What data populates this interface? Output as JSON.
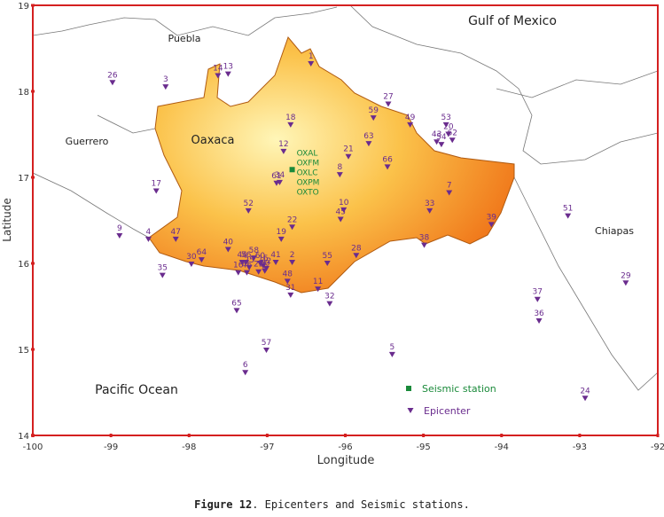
{
  "chart_data": {
    "type": "scatter",
    "xlabel": "Longitude",
    "ylabel": "Latitude",
    "xlim": [
      -100,
      -92
    ],
    "ylim": [
      14,
      19
    ],
    "xticks": [
      -100,
      -99,
      -98,
      -97,
      -96,
      -95,
      -94,
      -93,
      -92
    ],
    "yticks": [
      14,
      15,
      16,
      17,
      18,
      19
    ],
    "annotations": [
      "Puebla",
      "Gulf of Mexico",
      "Guerrero",
      "Oaxaca",
      "Chiapas",
      "Pacific Ocean"
    ],
    "series": [
      {
        "name": "Seismic station",
        "color": "#1a8a3a",
        "marker": "square",
        "x": [
          -96.68
        ],
        "values": [
          17.09
        ],
        "codes": [
          "OXAL",
          "OXFM",
          "OXLC",
          "OXPM",
          "OXTO"
        ]
      },
      {
        "name": "Epicenter",
        "color": "#6a2c8e",
        "marker": "triangle-down",
        "labels": [
          "1",
          "2",
          "3",
          "4",
          "5",
          "6",
          "7",
          "8",
          "9",
          "10",
          "11",
          "12",
          "13",
          "14",
          "15",
          "16",
          "17",
          "18",
          "19",
          "20",
          "21",
          "22",
          "23",
          "24",
          "25",
          "26",
          "27",
          "28",
          "29",
          "30",
          "31",
          "32",
          "33",
          "34",
          "35",
          "36",
          "37",
          "38",
          "39",
          "40",
          "41",
          "42",
          "43",
          "44",
          "45",
          "46",
          "47",
          "48",
          "49",
          "50",
          "51",
          "52",
          "53",
          "54",
          "55",
          "56",
          "57",
          "58",
          "59",
          "60",
          "61",
          "62",
          "63",
          "64",
          "65",
          "66"
        ],
        "x": [
          -96.44,
          -96.68,
          -98.3,
          -98.52,
          -95.4,
          -97.28,
          -94.67,
          -96.07,
          -98.89,
          -96.02,
          -96.35,
          -96.79,
          -97.5,
          -97.63,
          -97.05,
          -97.37,
          -98.42,
          -96.7,
          -96.82,
          -94.68,
          -95.96,
          -96.68,
          -97.11,
          -92.93,
          -97.23,
          -98.98,
          -95.45,
          -95.86,
          -92.41,
          -97.97,
          -96.7,
          -96.2,
          -94.92,
          -96.84,
          -98.34,
          -93.52,
          -93.54,
          -94.99,
          -94.13,
          -97.5,
          -96.89,
          -97.01,
          -94.83,
          -97.32,
          -96.06,
          -97.26,
          -98.17,
          -96.74,
          -95.17,
          -97.03,
          -93.15,
          -97.24,
          -94.71,
          -94.77,
          -96.23,
          -97.27,
          -97.01,
          -97.17,
          -95.64,
          -97.09,
          -96.88,
          -94.63,
          -95.7,
          -97.84,
          -97.39,
          -95.46
        ],
        "values": [
          18.32,
          16.01,
          18.05,
          16.28,
          14.94,
          14.73,
          16.82,
          17.03,
          16.32,
          16.62,
          15.7,
          17.3,
          18.2,
          18.18,
          15.97,
          15.89,
          16.84,
          17.61,
          16.28,
          17.5,
          17.24,
          16.42,
          15.9,
          14.43,
          15.95,
          18.1,
          17.85,
          16.09,
          15.77,
          15.99,
          15.63,
          15.53,
          16.61,
          16.94,
          15.86,
          15.33,
          15.58,
          16.21,
          16.45,
          16.16,
          16.01,
          15.94,
          17.41,
          16.01,
          16.51,
          15.89,
          16.28,
          15.79,
          17.61,
          15.91,
          16.55,
          16.61,
          17.61,
          17.38,
          16.0,
          16.01,
          14.99,
          16.06,
          17.69,
          16.0,
          16.93,
          17.43,
          17.39,
          16.04,
          15.45,
          17.12
        ]
      }
    ]
  },
  "caption": {
    "label": "Figure 12",
    "text": ". Epicenters and Seismic stations."
  }
}
